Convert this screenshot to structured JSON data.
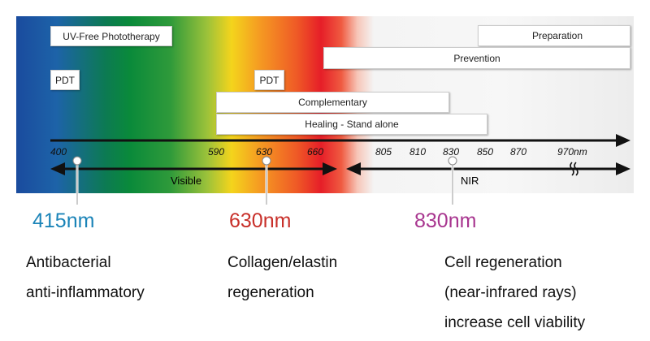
{
  "boxes": {
    "uv_free": "UV-Free Phototherapy",
    "preparation": "Preparation",
    "prevention": "Prevention",
    "pdt1": "PDT",
    "pdt2": "PDT",
    "complementary": "Complementary",
    "healing": "Healing - Stand alone"
  },
  "ticks": [
    "400",
    "590",
    "630",
    "660",
    "805",
    "810",
    "830",
    "850",
    "870",
    "970nm"
  ],
  "ranges": {
    "visible": "Visible",
    "nir": "NIR"
  },
  "highlights": [
    {
      "label": "415nm",
      "color": "#1b84b8",
      "lines": [
        "Antibacterial",
        "anti-inflammatory"
      ]
    },
    {
      "label": "630nm",
      "color": "#c8302a",
      "lines": [
        "Collagen/elastin",
        "regeneration"
      ]
    },
    {
      "label": "830nm",
      "color": "#a8358f",
      "lines": [
        "Cell regeneration",
        "(near-infrared rays)",
        "increase cell viability"
      ]
    }
  ]
}
